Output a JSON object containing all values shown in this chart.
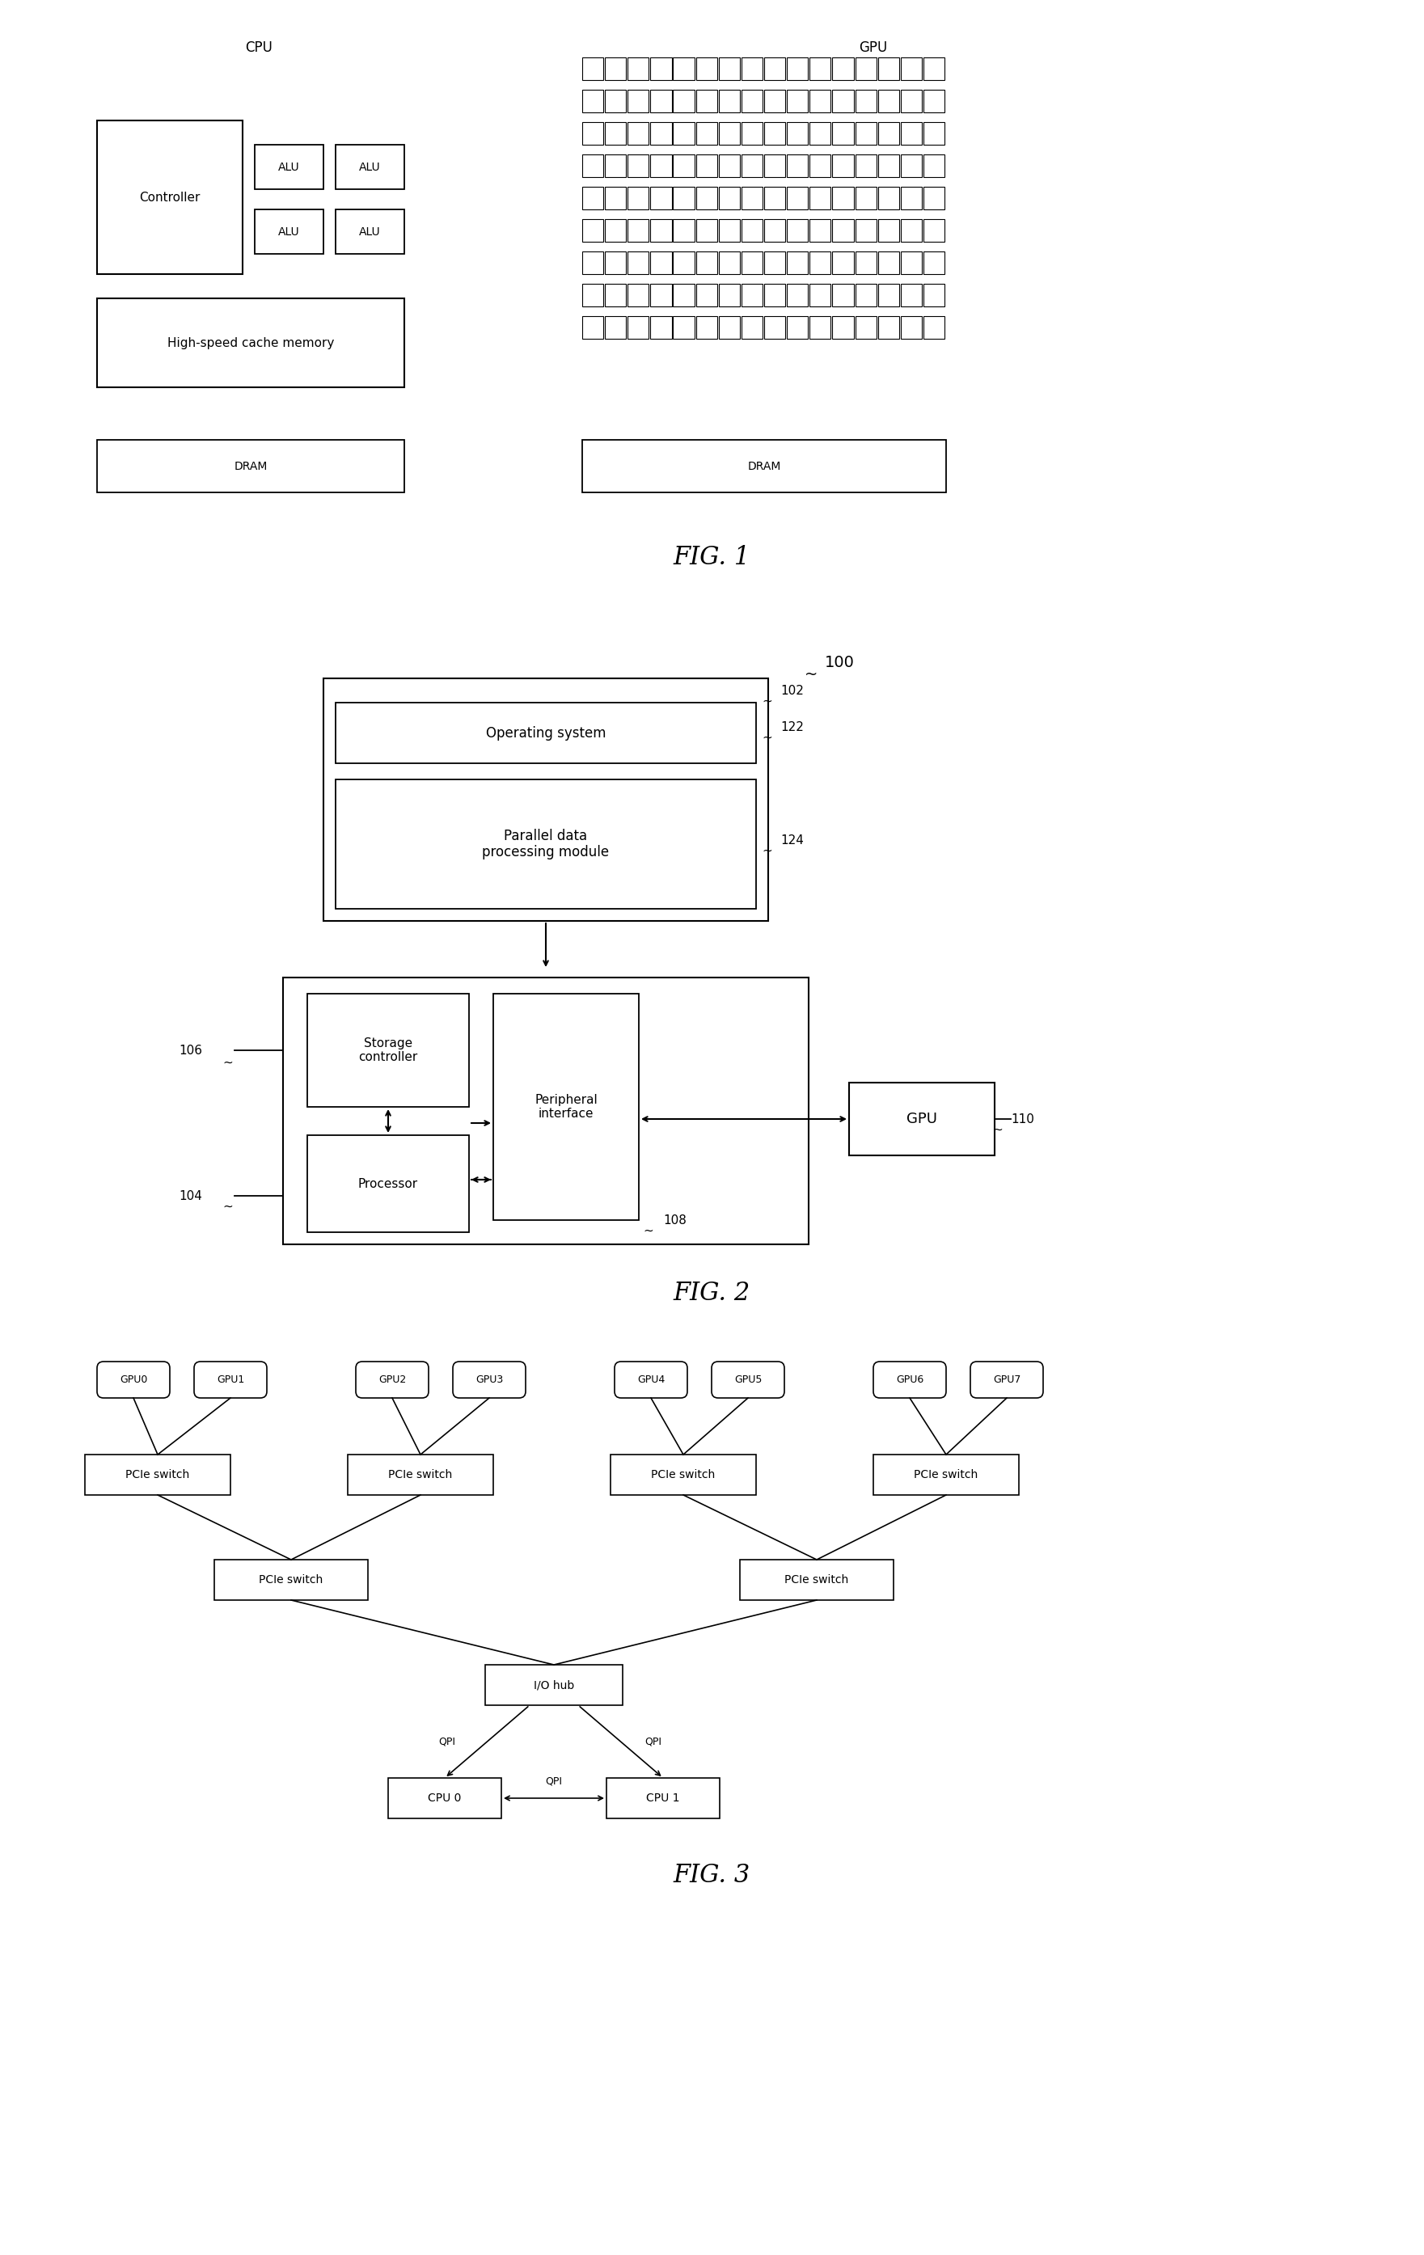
{
  "fig_width": 17.61,
  "fig_height": 27.89,
  "bg_color": "#ffffff",
  "line_color": "#000000",
  "text_color": "#000000",
  "fig1": {
    "cpu_label": "CPU",
    "gpu_label": "GPU",
    "controller_text": "Controller",
    "alu_texts": [
      "ALU",
      "ALU",
      "ALU",
      "ALU"
    ],
    "cache_text": "High-speed cache memory",
    "dram_text": "DRAM",
    "fig_label": "FIG. 1",
    "gpu_rows": 9,
    "gpu_cols": 16
  },
  "fig2": {
    "label_100": "100",
    "label_102": "102",
    "label_104": "104",
    "label_106": "106",
    "label_108": "108",
    "label_110": "110",
    "label_122": "122",
    "label_124": "124",
    "os_text": "Operating system",
    "pdp_text": "Parallel data\nprocessing module",
    "storage_text": "Storage\ncontroller",
    "peripheral_text": "Peripheral\ninterface",
    "processor_text": "Processor",
    "gpu_text": "GPU",
    "fig_label": "FIG. 2"
  },
  "fig3": {
    "gpu_labels": [
      "GPU0",
      "GPU1",
      "GPU2",
      "GPU3",
      "GPU4",
      "GPU5",
      "GPU6",
      "GPU7"
    ],
    "pcie_top": [
      "PCIe switch",
      "PCIe switch",
      "PCIe switch",
      "PCIe switch"
    ],
    "pcie_mid": [
      "PCIe switch",
      "PCIe switch"
    ],
    "iohub_text": "I/O hub",
    "cpu0_text": "CPU 0",
    "cpu1_text": "CPU 1",
    "qpi_label": "QPI",
    "fig_label": "FIG. 3"
  }
}
